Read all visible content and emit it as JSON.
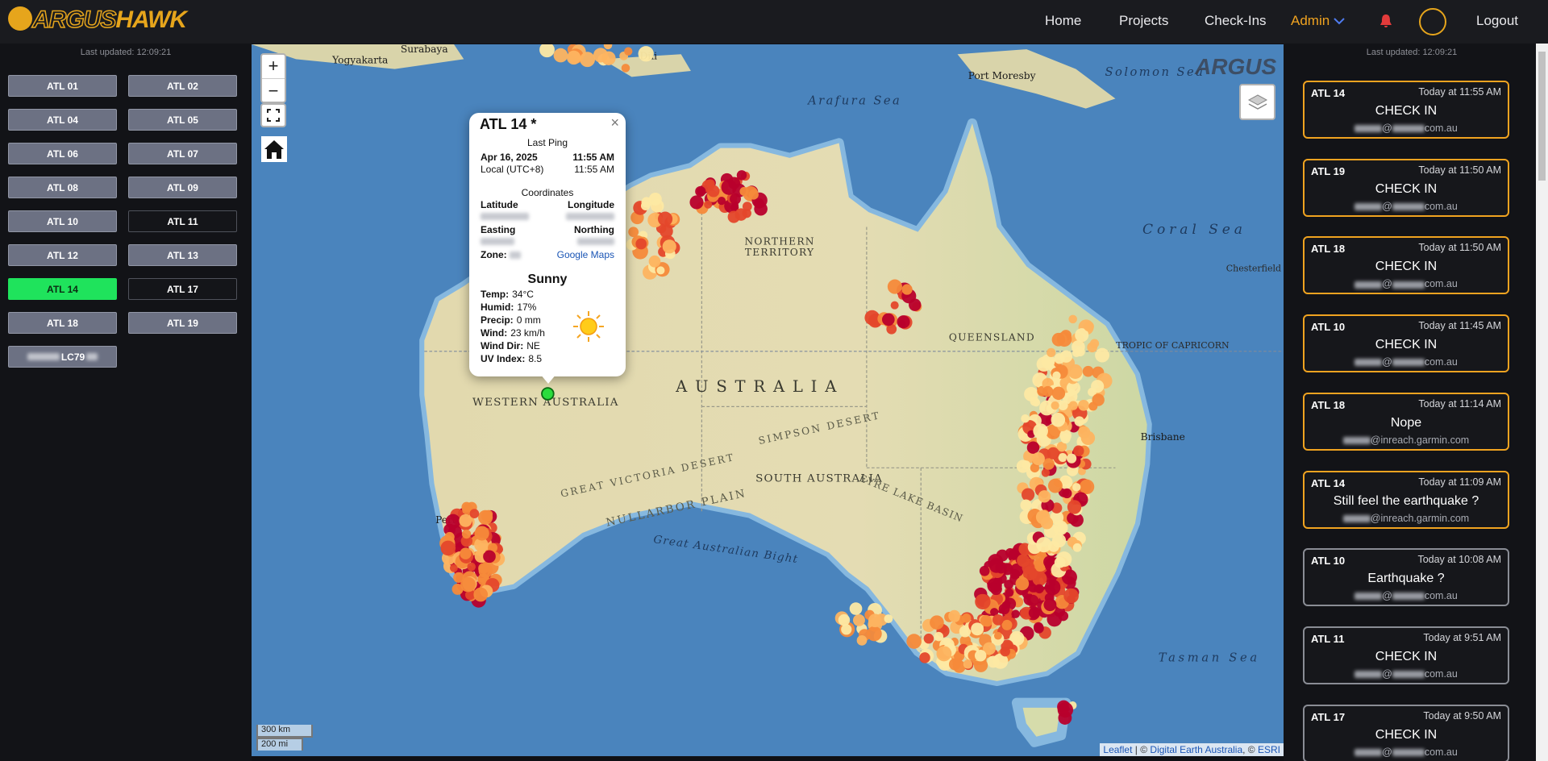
{
  "header": {
    "logo": {
      "part1": "ARGUS",
      "part2": "HAWK"
    },
    "nav": [
      "Home",
      "Projects",
      "Check-Ins",
      "Admin",
      "Logout"
    ],
    "last_updated_left": "Last updated: 12:09:21",
    "last_updated_right": "Last updated: 12:09:21"
  },
  "devices": [
    {
      "label": "ATL 01",
      "state": "inactive"
    },
    {
      "label": "ATL 02",
      "state": "inactive"
    },
    {
      "label": "ATL 04",
      "state": "inactive"
    },
    {
      "label": "ATL 05",
      "state": "inactive"
    },
    {
      "label": "ATL 06",
      "state": "inactive"
    },
    {
      "label": "ATL 07",
      "state": "inactive"
    },
    {
      "label": "ATL 08",
      "state": "inactive"
    },
    {
      "label": "ATL 09",
      "state": "inactive"
    },
    {
      "label": "ATL 10",
      "state": "inactive"
    },
    {
      "label": "ATL 11",
      "state": "offline"
    },
    {
      "label": "ATL 12",
      "state": "inactive"
    },
    {
      "label": "ATL 13",
      "state": "inactive"
    },
    {
      "label": "ATL 14",
      "state": "selected"
    },
    {
      "label": "ATL 17",
      "state": "offline"
    },
    {
      "label": "ATL 18",
      "state": "inactive"
    },
    {
      "label": "ATL 19",
      "state": "inactive"
    },
    {
      "label": "LC79",
      "state": "inactive",
      "blurred": true
    }
  ],
  "popup": {
    "close": "×",
    "title": "ATL 14 *",
    "last_ping": "Last Ping",
    "date": "Apr 16, 2025",
    "time": "11:55 AM",
    "local_label": "Local (UTC+8)",
    "local_time": "11:55 AM",
    "coords_heading": "Coordinates",
    "latitude": "Latitude",
    "longitude": "Longitude",
    "easting": "Easting",
    "northing": "Northing",
    "zone": "Zone:",
    "google_maps": "Google Maps",
    "weather": {
      "condition": "Sunny",
      "rows": [
        [
          "Temp:",
          "34°C"
        ],
        [
          "Humid:",
          "17%"
        ],
        [
          "Precip:",
          "0 mm"
        ],
        [
          "Wind:",
          "23 km/h"
        ],
        [
          "Wind Dir:",
          "NE"
        ],
        [
          "UV Index:",
          "8.5"
        ]
      ]
    }
  },
  "checkins": [
    {
      "name": "ATL 14",
      "time": "Today at 11:55 AM",
      "message": "CHECK IN",
      "email": [
        "@",
        "com.au"
      ],
      "border_color": "#f0a320"
    },
    {
      "name": "ATL 19",
      "time": "Today at 11:50 AM",
      "message": "CHECK IN",
      "email": [
        "@",
        "com.au"
      ],
      "border_color": "#f0a320"
    },
    {
      "name": "ATL 18",
      "time": "Today at 11:50 AM",
      "message": "CHECK IN",
      "email": [
        "@",
        "com.au"
      ],
      "border_color": "#f0a320"
    },
    {
      "name": "ATL 10",
      "time": "Today at 11:45 AM",
      "message": "CHECK IN",
      "email": [
        "@",
        "com.au"
      ],
      "border_color": "#f0a320"
    },
    {
      "name": "ATL 18",
      "time": "Today at 11:14 AM",
      "message": "Nope",
      "email": [
        "@inreach.garmin.com"
      ],
      "border_color": "#f0a320"
    },
    {
      "name": "ATL 14",
      "time": "Today at 11:09 AM",
      "message": "Still feel the earthquake ?",
      "email": [
        "@inreach.garmin.com"
      ],
      "border_color": "#f0a320"
    },
    {
      "name": "ATL 10",
      "time": "Today at 10:08 AM",
      "message": "Earthquake ?",
      "email": [
        "@",
        "com.au"
      ],
      "border_color": "#8a8d95"
    },
    {
      "name": "ATL 11",
      "time": "Today at 9:51 AM",
      "message": "CHECK IN",
      "email": [
        "@",
        "com.au"
      ],
      "border_color": "#8a8d95"
    },
    {
      "name": "ATL 17",
      "time": "Today at 9:50 AM",
      "message": "CHECK IN",
      "email": [
        "@",
        "com.au"
      ],
      "border_color": "#8a8d95"
    }
  ],
  "map": {
    "zoom_in": "+",
    "zoom_out": "−",
    "watermark": "ARGUS",
    "scale": [
      "300 km",
      "200 mi"
    ],
    "attribution": [
      "Leaflet",
      " | © ",
      "Digital Earth Australia",
      ", © ",
      "ESRI"
    ],
    "labels": [
      "AUSTRALIA",
      "WESTERN AUSTRALIA",
      "NORTHERN",
      "TERRITORY",
      "QUEENSLAND",
      "SOUTH AUSTRALIA",
      "Coral Sea",
      "Arafura Sea",
      "Tasman Sea",
      "Great Australian Bight",
      "GREAT VICTORIA DESERT",
      "NULLARBOR PLAIN",
      "SIMPSON DESERT",
      "EYRE LAKE BASIN",
      "TROPIC OF CAPRICORN",
      "Brisbane",
      "Perth",
      "Port Moresby",
      "Solomon Sea",
      "Yogyakarta",
      "Surabaya",
      "Dili",
      "Chesterfield"
    ]
  }
}
